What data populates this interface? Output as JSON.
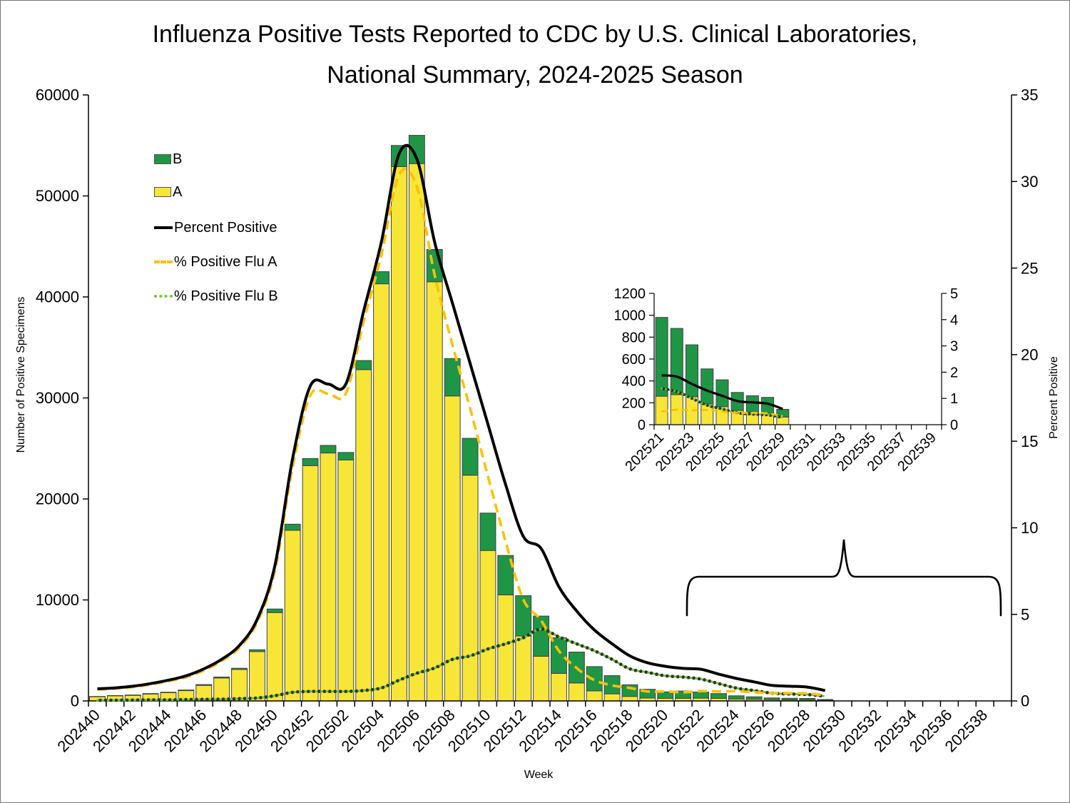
{
  "title": {
    "line1": "Influenza Positive Tests Reported to CDC by U.S. Clinical Laboratories,",
    "line2": "National Summary, 2024-2025 Season"
  },
  "legend": {
    "items": [
      {
        "label": "B",
        "swatch": "bar-green"
      },
      {
        "label": "A",
        "swatch": "bar-yellow"
      },
      {
        "label": "Percent Positive",
        "swatch": "line-solid-black"
      },
      {
        "label": "% Positive Flu A",
        "swatch": "line-dashed-gold"
      },
      {
        "label": "% Positive Flu B",
        "swatch": "line-dotted-green"
      }
    ]
  },
  "colors": {
    "flu_a_bar": "#F7E637",
    "flu_b_bar": "#1F9646",
    "bar_outline": "#404040",
    "percent_positive_line": "#000000",
    "percent_flu_a_line": "#FFC000",
    "percent_flu_b_line": "#66CC22",
    "dot_underlay": "#303030"
  },
  "chart_data": [
    {
      "id": "main",
      "type": "bar+line",
      "xlabel": "Week",
      "ylabel_left": "Number of Positive Specimens",
      "ylabel_right": "Percent Positive",
      "ylim_left": [
        0,
        60000
      ],
      "yticks_left": [
        0,
        10000,
        20000,
        30000,
        40000,
        50000,
        60000
      ],
      "ylim_right": [
        0,
        35
      ],
      "yticks_right": [
        0,
        5,
        10,
        15,
        20,
        25,
        30,
        35
      ],
      "n_slots": 52,
      "x_tick_labels": [
        "202440",
        "202442",
        "202444",
        "202446",
        "202448",
        "202450",
        "202452",
        "202502",
        "202504",
        "202506",
        "202508",
        "202510",
        "202512",
        "202514",
        "202516",
        "202518",
        "202520",
        "202522",
        "202524",
        "202526",
        "202528",
        "202530",
        "202532",
        "202534",
        "202536",
        "202538"
      ],
      "x_tick_slots": [
        0,
        2,
        4,
        6,
        8,
        10,
        12,
        14,
        16,
        18,
        20,
        22,
        24,
        26,
        28,
        30,
        32,
        34,
        36,
        38,
        40,
        42,
        44,
        46,
        48,
        50
      ],
      "categories": [
        "202440",
        "202441",
        "202442",
        "202443",
        "202444",
        "202445",
        "202446",
        "202447",
        "202448",
        "202449",
        "202450",
        "202451",
        "202452",
        "202501",
        "202502",
        "202503",
        "202504",
        "202505",
        "202506",
        "202507",
        "202508",
        "202509",
        "202510",
        "202511",
        "202512",
        "202513",
        "202514",
        "202515",
        "202516",
        "202517",
        "202518",
        "202519",
        "202520",
        "202521",
        "202522",
        "202523",
        "202524",
        "202525",
        "202526",
        "202527",
        "202528",
        "202529"
      ],
      "bar_series": [
        {
          "name": "A",
          "values": [
            420,
            510,
            550,
            685,
            820,
            1020,
            1540,
            2270,
            3110,
            4890,
            8750,
            16900,
            23300,
            24550,
            23850,
            32800,
            41300,
            52900,
            53200,
            41500,
            30200,
            22350,
            14900,
            10500,
            6430,
            4420,
            2730,
            1780,
            1000,
            700,
            450,
            280,
            250,
            260,
            275,
            255,
            190,
            165,
            130,
            115,
            105,
            70
          ]
        },
        {
          "name": "B",
          "values": [
            25,
            30,
            35,
            40,
            45,
            60,
            80,
            100,
            130,
            180,
            350,
            600,
            700,
            750,
            750,
            900,
            1200,
            2100,
            2800,
            3200,
            3700,
            3650,
            3700,
            3900,
            3990,
            3980,
            3520,
            3060,
            2400,
            1800,
            1150,
            870,
            650,
            720,
            605,
            475,
            320,
            245,
            165,
            150,
            145,
            70
          ]
        }
      ],
      "line_series": [
        {
          "name": "Percent Positive",
          "style": "solid",
          "axis": "right",
          "values": [
            0.7,
            0.75,
            0.85,
            1.0,
            1.2,
            1.45,
            1.85,
            2.4,
            3.2,
            4.7,
            7.8,
            14.0,
            18.2,
            18.3,
            18.3,
            22.5,
            26.5,
            31.6,
            31.3,
            26.5,
            23.0,
            19.5,
            16.0,
            12.5,
            9.5,
            8.8,
            6.6,
            5.2,
            4.1,
            3.3,
            2.6,
            2.2,
            2.0,
            1.88,
            1.83,
            1.55,
            1.3,
            1.1,
            0.9,
            0.85,
            0.8,
            0.6
          ]
        },
        {
          "name": "% Positive Flu A",
          "style": "dashed",
          "axis": "right",
          "values": [
            0.66,
            0.71,
            0.8,
            0.94,
            1.14,
            1.37,
            1.76,
            2.3,
            3.07,
            4.53,
            7.5,
            13.5,
            17.65,
            17.75,
            17.75,
            21.9,
            25.75,
            30.4,
            29.7,
            24.6,
            20.6,
            16.9,
            13.0,
            9.2,
            5.85,
            4.65,
            2.9,
            1.9,
            1.2,
            0.9,
            0.75,
            0.55,
            0.55,
            0.5,
            0.57,
            0.55,
            0.56,
            0.5,
            0.45,
            0.45,
            0.43,
            0.33
          ]
        },
        {
          "name": "% Positive Flu B",
          "style": "dotted",
          "axis": "right",
          "values": [
            0.04,
            0.04,
            0.05,
            0.06,
            0.06,
            0.08,
            0.09,
            0.1,
            0.13,
            0.17,
            0.3,
            0.5,
            0.55,
            0.55,
            0.55,
            0.6,
            0.75,
            1.2,
            1.6,
            1.9,
            2.4,
            2.6,
            3.0,
            3.3,
            3.65,
            4.15,
            3.7,
            3.3,
            2.9,
            2.4,
            1.85,
            1.65,
            1.45,
            1.38,
            1.26,
            1.0,
            0.74,
            0.6,
            0.45,
            0.4,
            0.37,
            0.27
          ]
        }
      ],
      "has_brace_annotation": true
    },
    {
      "id": "inset",
      "type": "bar+line",
      "xlabel": "",
      "ylabel_left": "",
      "ylabel_right": "",
      "ylim_left": [
        0,
        1200
      ],
      "yticks_left": [
        0,
        200,
        400,
        600,
        800,
        1000,
        1200
      ],
      "ylim_right": [
        0,
        5
      ],
      "yticks_right": [
        0,
        1,
        2,
        3,
        4,
        5
      ],
      "n_slots": 19,
      "x_tick_labels": [
        "202521",
        "202523",
        "202525",
        "202527",
        "202529",
        "202531",
        "202533",
        "202535",
        "202537",
        "202539"
      ],
      "x_tick_slots": [
        0,
        2,
        4,
        6,
        8,
        10,
        12,
        14,
        16,
        18
      ],
      "categories": [
        "202521",
        "202522",
        "202523",
        "202524",
        "202525",
        "202526",
        "202527",
        "202528",
        "202529"
      ],
      "bar_series": [
        {
          "name": "A",
          "values": [
            260,
            275,
            255,
            190,
            165,
            130,
            115,
            105,
            70
          ]
        },
        {
          "name": "B",
          "values": [
            720,
            605,
            475,
            320,
            245,
            165,
            150,
            145,
            70
          ]
        }
      ],
      "line_series": [
        {
          "name": "Percent Positive",
          "style": "solid",
          "axis": "right",
          "values": [
            1.88,
            1.83,
            1.55,
            1.3,
            1.1,
            0.9,
            0.85,
            0.8,
            0.6
          ]
        },
        {
          "name": "% Positive Flu A",
          "style": "dashed",
          "axis": "right",
          "values": [
            0.5,
            0.57,
            0.55,
            0.56,
            0.5,
            0.45,
            0.45,
            0.43,
            0.33
          ]
        },
        {
          "name": "% Positive Flu B",
          "style": "dotted",
          "axis": "right",
          "values": [
            1.38,
            1.26,
            1.0,
            0.74,
            0.6,
            0.45,
            0.4,
            0.37,
            0.27
          ]
        }
      ],
      "has_brace_annotation": false
    }
  ]
}
